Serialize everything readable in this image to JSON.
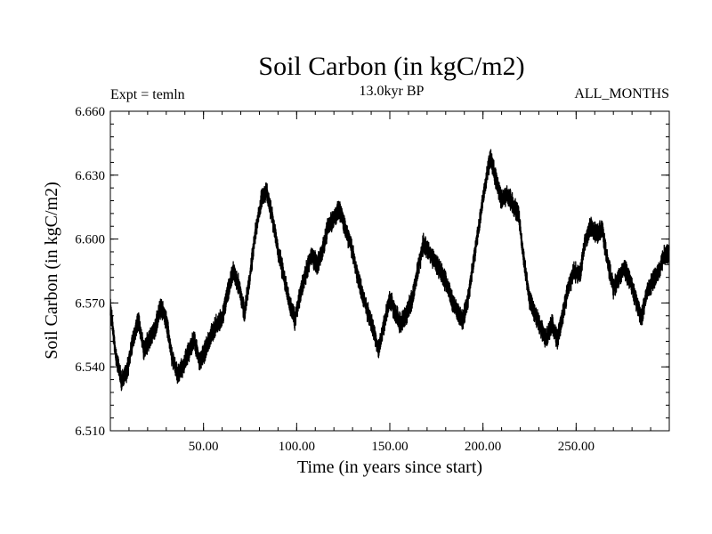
{
  "chart_data": {
    "type": "line",
    "title": "Soil Carbon (in kgC/m2)",
    "subtitle": "13.0kyr BP",
    "left_label": "Expt = temln",
    "right_label": "ALL_MONTHS",
    "xlabel": "Time (in years since start)",
    "ylabel": "Soil Carbon (in kgC/m2)",
    "xlim": [
      0,
      300
    ],
    "ylim": [
      6.51,
      6.66
    ],
    "x_ticks": [
      50,
      100,
      150,
      200,
      250
    ],
    "x_tick_labels": [
      "50.00",
      "100.00",
      "150.00",
      "200.00",
      "250.00"
    ],
    "y_ticks": [
      6.51,
      6.54,
      6.57,
      6.6,
      6.63,
      6.66
    ],
    "y_tick_labels": [
      "6.510",
      "6.540",
      "6.570",
      "6.600",
      "6.630",
      "6.660"
    ],
    "series": [
      {
        "name": "Soil Carbon",
        "color": "#000000",
        "x": [
          0,
          3,
          6,
          9,
          12,
          15,
          18,
          21,
          24,
          27,
          30,
          33,
          36,
          39,
          42,
          45,
          48,
          51,
          54,
          57,
          60,
          63,
          66,
          69,
          72,
          75,
          78,
          81,
          84,
          87,
          90,
          93,
          96,
          99,
          102,
          105,
          108,
          111,
          114,
          117,
          120,
          123,
          126,
          129,
          132,
          135,
          138,
          141,
          144,
          147,
          150,
          153,
          156,
          159,
          162,
          165,
          168,
          171,
          174,
          177,
          180,
          183,
          186,
          189,
          192,
          195,
          198,
          201,
          204,
          207,
          210,
          213,
          216,
          219,
          222,
          225,
          228,
          231,
          234,
          237,
          240,
          243,
          246,
          249,
          252,
          255,
          258,
          261,
          264,
          267,
          270,
          273,
          276,
          279,
          282,
          285,
          288,
          291,
          294,
          297,
          300
        ],
        "y": [
          6.568,
          6.545,
          6.533,
          6.538,
          6.552,
          6.562,
          6.548,
          6.553,
          6.558,
          6.568,
          6.562,
          6.545,
          6.537,
          6.54,
          6.547,
          6.553,
          6.542,
          6.548,
          6.555,
          6.56,
          6.563,
          6.575,
          6.585,
          6.578,
          6.565,
          6.583,
          6.604,
          6.618,
          6.622,
          6.61,
          6.595,
          6.583,
          6.57,
          6.562,
          6.575,
          6.584,
          6.592,
          6.588,
          6.595,
          6.606,
          6.61,
          6.614,
          6.605,
          6.598,
          6.585,
          6.575,
          6.566,
          6.558,
          6.548,
          6.56,
          6.572,
          6.565,
          6.56,
          6.565,
          6.572,
          6.585,
          6.598,
          6.594,
          6.59,
          6.585,
          6.58,
          6.572,
          6.566,
          6.562,
          6.572,
          6.59,
          6.607,
          6.625,
          6.638,
          6.628,
          6.618,
          6.621,
          6.616,
          6.612,
          6.59,
          6.572,
          6.565,
          6.558,
          6.553,
          6.56,
          6.553,
          6.565,
          6.578,
          6.585,
          6.583,
          6.6,
          6.606,
          6.602,
          6.605,
          6.589,
          6.577,
          6.582,
          6.586,
          6.58,
          6.572,
          6.563,
          6.575,
          6.58,
          6.584,
          6.592,
          6.593
        ],
        "amplitude": 0.0045
      }
    ]
  }
}
